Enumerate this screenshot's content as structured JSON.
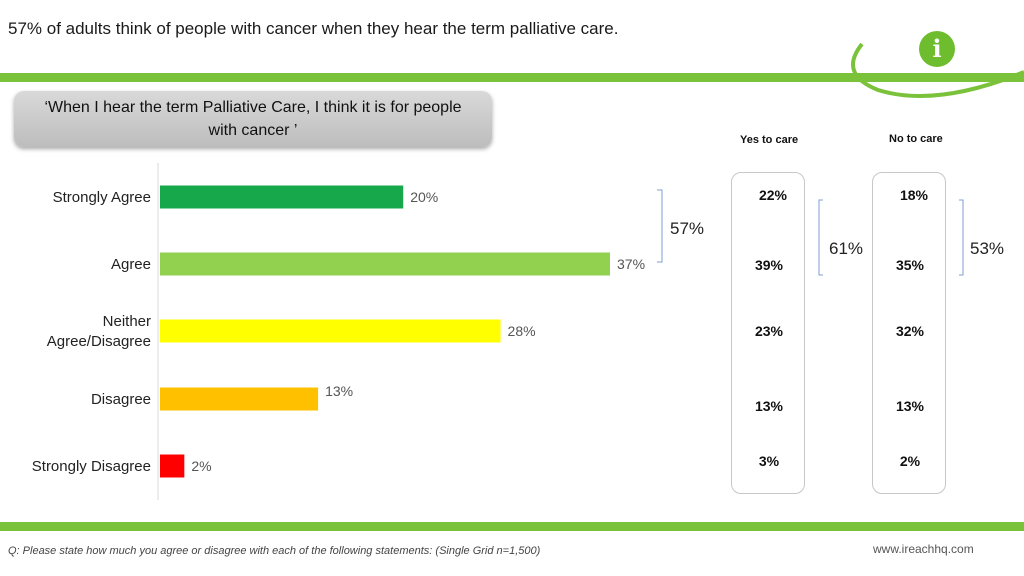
{
  "header": {
    "title": "57% of adults think of people with cancer when they hear the term palliative care.",
    "info_icon": "info-icon"
  },
  "question": {
    "text": "‘When I hear the term Palliative Care, I think  it is for people with cancer ’"
  },
  "chart_data": {
    "type": "bar",
    "orientation": "horizontal",
    "categories": [
      "Strongly Agree",
      "Agree",
      "Neither Agree/Disagree",
      "Disagree",
      "Strongly Disagree"
    ],
    "category_lines": [
      [
        "Strongly Agree"
      ],
      [
        "Agree"
      ],
      [
        "Neither",
        "Agree/Disagree"
      ],
      [
        "Disagree"
      ],
      [
        "Strongly Disagree"
      ]
    ],
    "values": [
      20,
      37,
      28,
      13,
      2
    ],
    "value_labels": [
      "20%",
      "37%",
      "28%",
      "13%",
      "2%"
    ],
    "colors": [
      "#17a84b",
      "#92d050",
      "#ffff00",
      "#ffc000",
      "#ff0000"
    ],
    "xlim": [
      0,
      40
    ],
    "grid": false,
    "net_agree_label": "57%"
  },
  "breakdown": {
    "yes_to_care": {
      "header": "Yes to care",
      "values": [
        "22%",
        "39%",
        "23%",
        "13%",
        "3%"
      ],
      "net_agree": "61%"
    },
    "no_to_care": {
      "header": "No to care",
      "values": [
        "18%",
        "35%",
        "32%",
        "13%",
        "2%"
      ],
      "net_agree": "53%"
    }
  },
  "footer": {
    "note": "Q: Please state how much you agree or disagree with each of the following statements: (Single Grid n=1,500)",
    "url": "www.ireachhq.com"
  },
  "colors": {
    "brand_green": "#79c23a",
    "bracket": "#7f9fcf"
  }
}
